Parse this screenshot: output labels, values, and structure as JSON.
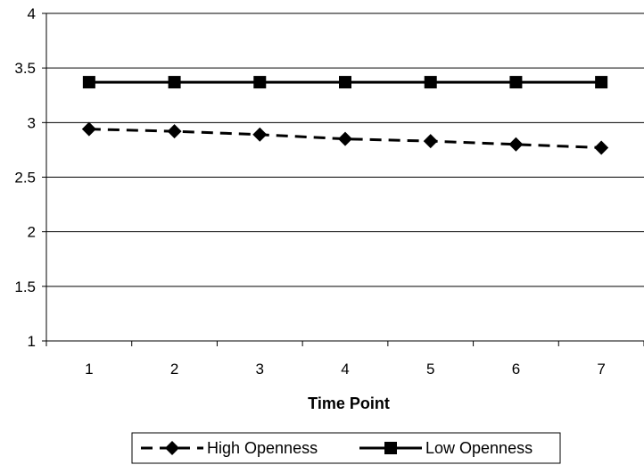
{
  "chart_data": {
    "type": "line",
    "title": "",
    "xlabel": "Time Point",
    "ylabel": "",
    "categories": [
      "1",
      "2",
      "3",
      "4",
      "5",
      "6",
      "7"
    ],
    "ylim": [
      1,
      4
    ],
    "yticks": [
      "1",
      "1.5",
      "2",
      "2.5",
      "3",
      "3.5",
      "4"
    ],
    "grid": "horizontal",
    "legend_position": "bottom",
    "series": [
      {
        "name": "High Openness",
        "values": [
          2.94,
          2.92,
          2.89,
          2.85,
          2.83,
          2.8,
          2.77
        ],
        "line_style": "dashed",
        "marker": "diamond",
        "color": "#000000"
      },
      {
        "name": "Low Openness",
        "values": [
          3.37,
          3.37,
          3.37,
          3.37,
          3.37,
          3.37,
          3.37
        ],
        "line_style": "solid",
        "marker": "square",
        "color": "#000000"
      }
    ]
  }
}
